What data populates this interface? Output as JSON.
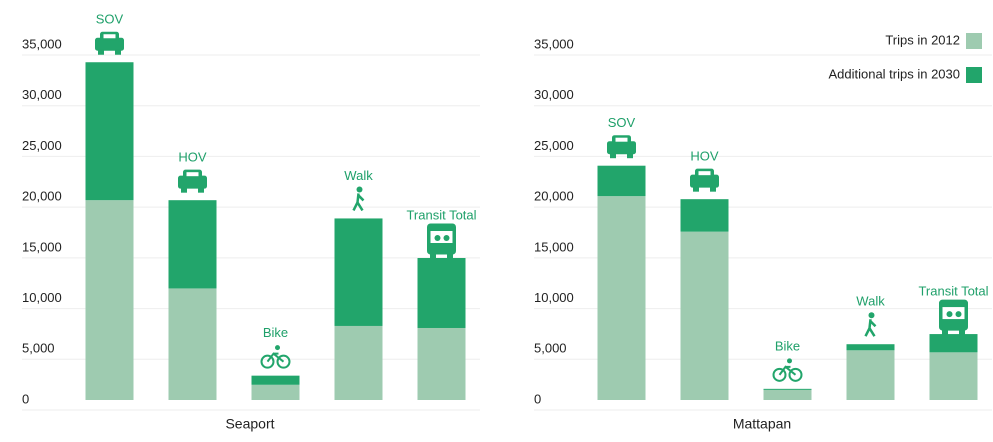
{
  "chart_data": [
    {
      "type": "stacked_bar",
      "xlabel": "Seaport",
      "categories": [
        "SOV",
        "HOV",
        "Bike",
        "Walk",
        "Transit Total"
      ],
      "series": [
        {
          "name": "Trips in 2012",
          "color": "#9ecbb0",
          "values": [
            19700,
            11000,
            1500,
            7300,
            7100
          ]
        },
        {
          "name": "Additional trips in 2030",
          "color": "#22a56b",
          "values": [
            13600,
            8700,
            900,
            10600,
            6900
          ]
        }
      ],
      "ylim": [
        0,
        35000
      ],
      "yticks": [
        0,
        {
          "value": 5000,
          "label": "5,000"
        },
        {
          "value": 10000,
          "label": "10,000"
        },
        {
          "value": 15000,
          "label": "15,000"
        },
        {
          "value": 20000,
          "label": "20,000"
        },
        {
          "value": 25000,
          "label": "25,000"
        },
        {
          "value": 30000,
          "label": "30,000"
        },
        {
          "value": 35000,
          "label": "35,000"
        }
      ],
      "grid": true,
      "legend": false
    },
    {
      "type": "stacked_bar",
      "xlabel": "Mattapan",
      "categories": [
        "SOV",
        "HOV",
        "Bike",
        "Walk",
        "Transit Total"
      ],
      "series": [
        {
          "name": "Trips in 2012",
          "color": "#9ecbb0",
          "values": [
            20100,
            16600,
            1000,
            4900,
            4700
          ]
        },
        {
          "name": "Additional trips in 2030",
          "color": "#22a56b",
          "values": [
            3000,
            3200,
            100,
            600,
            1800
          ]
        }
      ],
      "ylim": [
        0,
        35000
      ],
      "yticks": [
        0,
        {
          "value": 5000,
          "label": "5,000"
        },
        {
          "value": 10000,
          "label": "10,000"
        },
        {
          "value": 15000,
          "label": "15,000"
        },
        {
          "value": 20000,
          "label": "20,000"
        },
        {
          "value": 25000,
          "label": "25,000"
        },
        {
          "value": 30000,
          "label": "30,000"
        },
        {
          "value": 35000,
          "label": "35,000"
        }
      ],
      "grid": true,
      "legend": true,
      "legend_position": "top-right"
    }
  ]
}
